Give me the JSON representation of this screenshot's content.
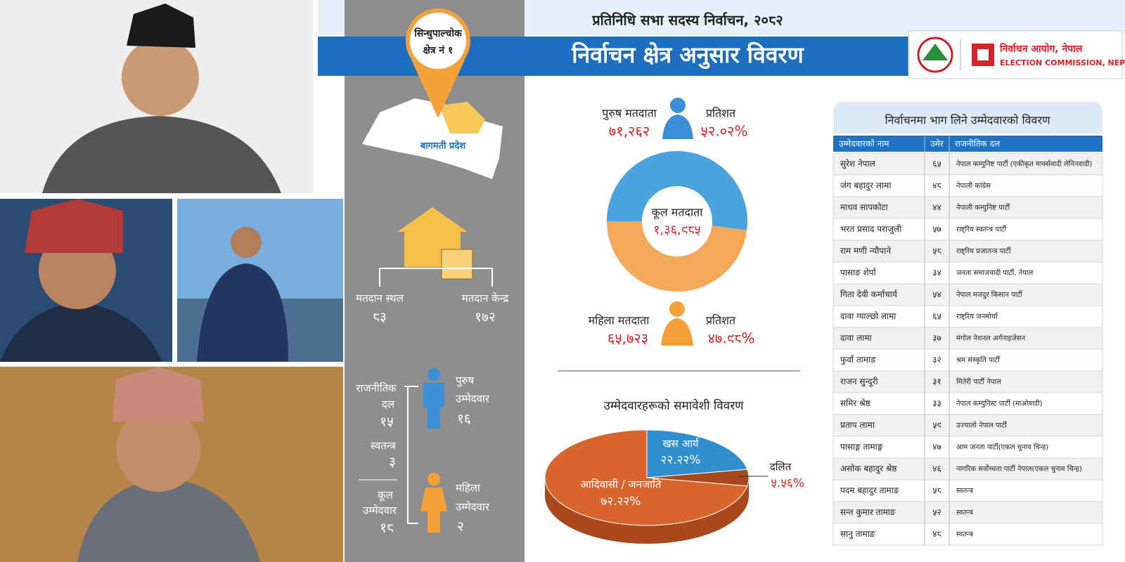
{
  "header": {
    "subtitle": "प्रतिनिधि सभा सदस्य निर्वाचन, २०८२",
    "title": "निर्वाचन क्षेत्र अनुसार विवरण",
    "commission_np": "निर्वाचन आयोग, नेपाल",
    "commission_en": "ELECTION COMMISSION, NEPAL"
  },
  "constituency": {
    "name_lines": [
      "सिन्धुपाल्चोक",
      "क्षेत्र नं १"
    ],
    "province": "बागमती प्रदेश"
  },
  "polling": {
    "places_label": "मतदान स्थल",
    "places": "८३",
    "centers_label": "मतदान केन्द्र",
    "centers": "१७२"
  },
  "candidates_summary": {
    "party_label": [
      "राजनीतिक",
      "दल"
    ],
    "party": "१५",
    "independent_label": "स्वतन्त्र",
    "independent": "३",
    "total_label": [
      "कूल",
      "उम्मेदवार"
    ],
    "total": "१८",
    "male_label": [
      "पुरुष",
      "उम्मेदवार"
    ],
    "male": "१६",
    "female_label": [
      "महिला",
      "उम्मेदवार"
    ],
    "female": "२"
  },
  "voters": {
    "total_label": "कूल मतदाता",
    "total": "१,३६,९८५",
    "male": {
      "label": "पुरुष मतदाता",
      "count": "७१,२६२",
      "percent_heading": "प्रतिशत",
      "percent": 52.02,
      "percent_label": "५२.०२%",
      "color": "#4aa3df"
    },
    "female": {
      "label": "महिला मतदाता",
      "count": "६५,७२३",
      "percent_heading": "प्रतिशत",
      "percent": 47.98,
      "percent_label": "४७.९८%",
      "color": "#f4a95a"
    }
  },
  "inclusion": {
    "title": "उम्मेदवारहरूको समावेशी विवरण",
    "segments": [
      {
        "label": "खस आर्य",
        "value": 22.22,
        "value_label": "२२.२२%",
        "color": "#2f8fcf"
      },
      {
        "label": "दलित",
        "value": 5.56,
        "value_label": "५.५६%",
        "color": "#a9481a"
      },
      {
        "label": "आदिवासी / जनजाति",
        "value": 72.22,
        "value_label": "७२.२२%",
        "color": "#d8652c"
      }
    ]
  },
  "table": {
    "title": "निर्वाचनमा भाग लिने उम्मेदवारको विवरण",
    "columns": [
      "उम्मेदवारको नाम",
      "उमेर",
      "राजनीतिक दल"
    ],
    "rows": [
      [
        "सुरेश नेपाल",
        "६५",
        "नेपाल कम्युनिष्ट पार्टी (एकीकृत मार्क्सवादी लेनिनवादी)"
      ],
      [
        "जंग बहादुर लामा",
        "४८",
        "नेपाली कांग्रेस"
      ],
      [
        "माधव सापकोटा",
        "४४",
        "नेपाली कम्युनिष्ट पार्टी"
      ],
      [
        "भरत प्रसाद पराजुली",
        "५७",
        "राष्ट्रिय स्वतन्त्र पार्टी"
      ],
      [
        "राम मणी न्यौपाने",
        "५८",
        "राष्ट्रिय प्रजातन्त्र पार्टी"
      ],
      [
        "पासाङ शेर्पा",
        "३४",
        "जनता समाजवादी पार्टी, नेपाल"
      ],
      [
        "गिता देवी कर्माचार्य",
        "५४",
        "नेपाल मजदुर किसान पार्टी"
      ],
      [
        "दावा ग्याल्छो लामा",
        "६५",
        "राष्ट्रिय जनमोर्चा"
      ],
      [
        "दावा लामा",
        "३७",
        "मंगोल नेशनल अर्गनाइजेसन"
      ],
      [
        "फुर्वा तामाङ",
        "३२",
        "श्रम संस्कृति पार्टी"
      ],
      [
        "राजन सुन्दुरी",
        "३१",
        "मितेरी पार्टी नेपाल"
      ],
      [
        "समिर श्रेष्ठ",
        "३३",
        "नेपाल कम्युनिस्ट पार्टी (माओवादी)"
      ],
      [
        "प्रताप लामा",
        "५९",
        "उज्यालो नेपाल पार्टी"
      ],
      [
        "पासाङ्ग तामाङ्ग",
        "४७",
        "आम जनता पार्टी(एकल चुनाव चिन्ह)"
      ],
      [
        "असोक बहादुर श्रेष्ठ",
        "४६",
        "नागरिक सर्वोच्चता पार्टी नेपाल(एकल चुनाव चिन्ह)"
      ],
      [
        "पदम बहादुर तामाङ",
        "५८",
        "स्वतन्त्र"
      ],
      [
        "सन्त कुमार तामाङ",
        "५२",
        "स्वतन्त्र"
      ],
      [
        "सानु तामाङ",
        "४८",
        "स्वतन्त्र"
      ]
    ]
  }
}
